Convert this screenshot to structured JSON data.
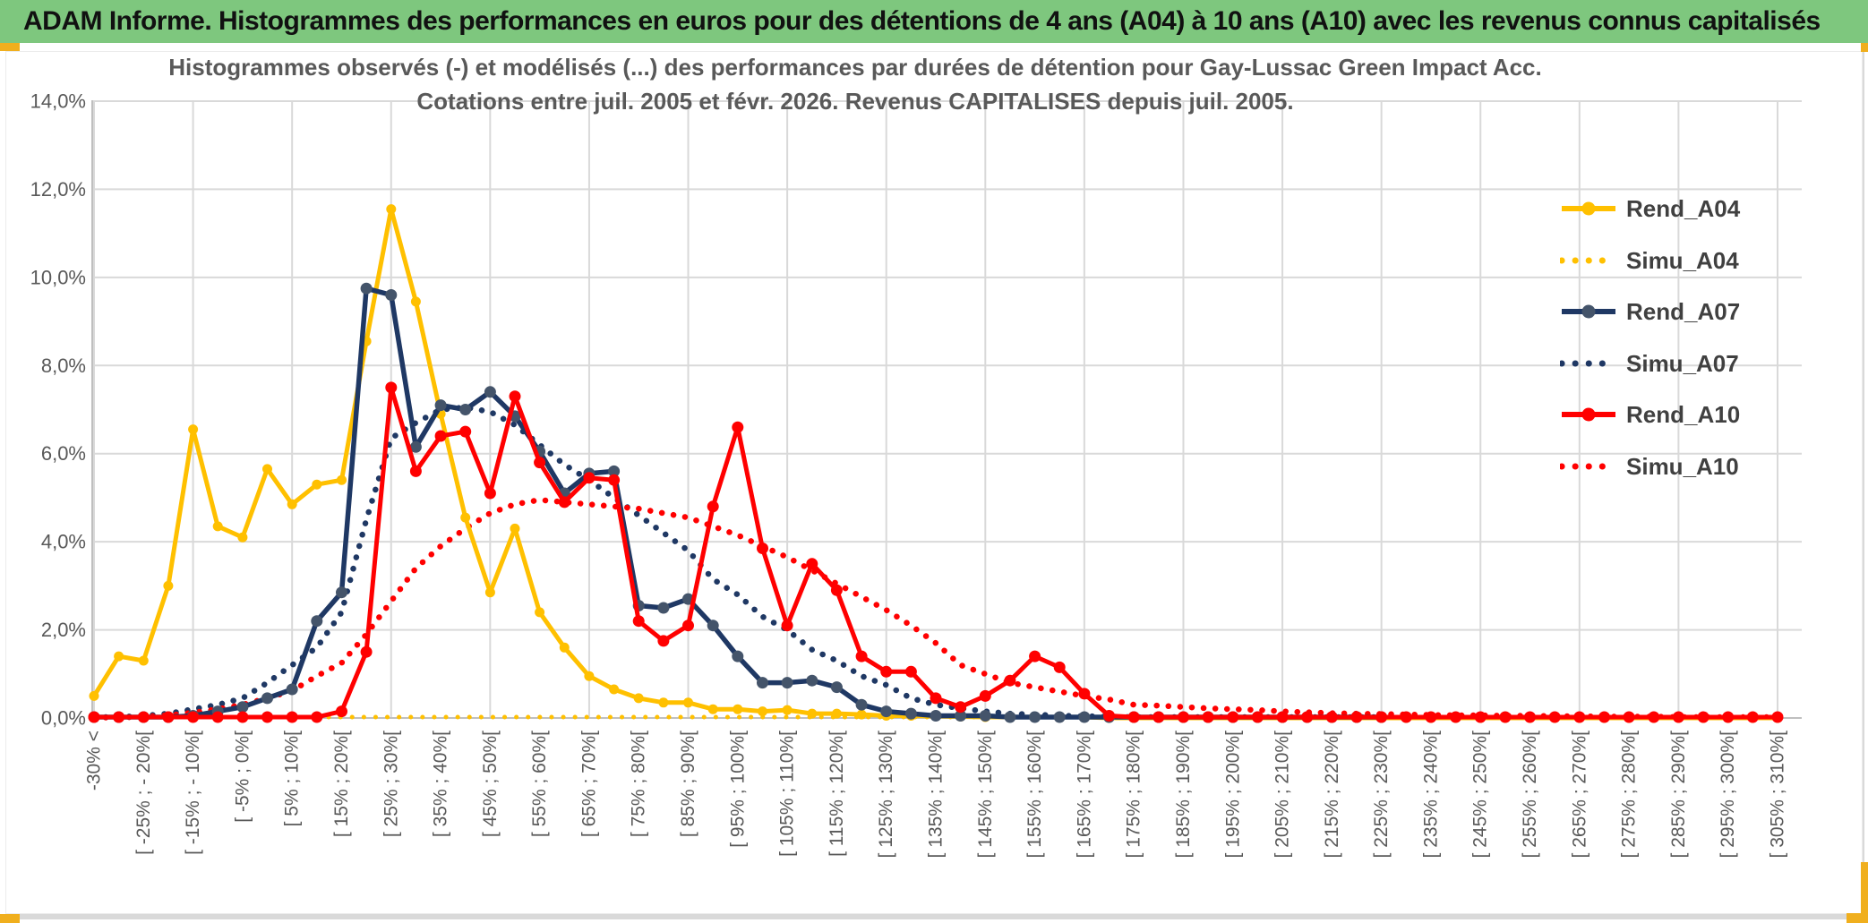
{
  "header": {
    "title": "ADAM Informe. Histogrammes des performances en euros pour des détentions de 4 ans (A04) à 10 ans (A10) avec les revenus connus capitalisés"
  },
  "chart": {
    "title_line1": "Histogrammes observés (-) et modélisés (...) des performances par durées de détention pour Gay-Lussac Green Impact Acc.",
    "title_line2": "Cotations entre juil. 2005 et févr. 2026. Revenus CAPITALISES depuis juil. 2005.",
    "y_axis_labels": [
      "0,0%",
      "2,0%",
      "4,0%",
      "6,0%",
      "8,0%",
      "10,0%",
      "12,0%",
      "14,0%"
    ]
  },
  "colors": {
    "header_green": "#7EC77E",
    "accent_yellow": "#F0AF1E",
    "gridline": "#D9D9D9",
    "axis_line": "#BFBFBF",
    "axis_text": "#595959",
    "title_text": "#595959",
    "legend_text": "#404040",
    "gold": "#FFC000",
    "navy": "#1F3864",
    "navy_marker": "#44546A",
    "red": "#FF0000"
  },
  "chart_data": {
    "type": "line",
    "title": "Histogrammes observés (-) et modélisés (...) des performances par durées de détention pour Gay-Lussac Green Impact Acc. Cotations entre juil. 2005 et févr. 2026. Revenus CAPITALISES depuis juil. 2005.",
    "ylabel": "",
    "xlabel": "",
    "ylim": [
      0,
      14
    ],
    "y_tick_step_percent": 2,
    "grid": true,
    "legend_position": "right",
    "points_per_x_tick": 2,
    "x_tick_labels": [
      "-30% <",
      "[ -25% ; - 20%[",
      "[ -15% ; - 10%[",
      "[ -5% ; 0%[",
      "[ 5% ; 10%[",
      "[ 15% ; 20%[",
      "[ 25% ; 30%[",
      "[ 35% ; 40%[",
      "[ 45% ; 50%[",
      "[ 55% ; 60%[",
      "[ 65% ; 70%[",
      "[ 75% ; 80%[",
      "[ 85% ; 90%[",
      "[ 95% ; 100%[",
      "[ 105% ; 110%[",
      "[ 115% ; 120%[",
      "[ 125% ; 130%[",
      "[ 135% ; 140%[",
      "[ 145% ; 150%[",
      "[ 155% ; 160%[",
      "[ 165% ; 170%[",
      "[ 175% ; 180%[",
      "[ 185% ; 190%[",
      "[ 195% ; 200%[",
      "[ 205% ; 210%[",
      "[ 215% ; 220%[",
      "[ 225% ; 230%[",
      "[ 235% ; 240%[",
      "[ 245% ; 250%[",
      "[ 255% ; 260%[",
      "[ 265% ; 270%[",
      "[ 275% ; 280%[",
      "[ 285% ; 290%[",
      "[ 295% ; 300%[",
      "[ 305% ; 310%["
    ],
    "series": [
      {
        "name": "Rend_A04",
        "style": "solid",
        "color": "#FFC000",
        "marker_color": "#FFC000",
        "line_width": 5,
        "marker_r": 5.5,
        "values": [
          0.5,
          1.4,
          1.3,
          3.0,
          6.55,
          4.35,
          4.1,
          5.65,
          4.85,
          5.3,
          5.4,
          8.55,
          11.55,
          9.45,
          6.9,
          4.55,
          2.85,
          4.3,
          2.4,
          1.6,
          0.95,
          0.65,
          0.45,
          0.35,
          0.35,
          0.2,
          0.2,
          0.15,
          0.18,
          0.1,
          0.1,
          0.08,
          0.05,
          0.05,
          0.04,
          0.03,
          0.02,
          0.02,
          0.02,
          0.02,
          0.02,
          0,
          0,
          0,
          0,
          0,
          0,
          0,
          0,
          0,
          0,
          0,
          0,
          0,
          0,
          0,
          0,
          0,
          0,
          0,
          0,
          0,
          0,
          0,
          0,
          0,
          0,
          0,
          0
        ]
      },
      {
        "name": "Simu_A04",
        "style": "dotted",
        "color": "#FFC000",
        "marker_color": "#FFC000",
        "line_width": 5,
        "marker_r": 0,
        "values": [
          0.02,
          0.02,
          0.02,
          0.02,
          0.02,
          0.02,
          0.02,
          0.02,
          0.02,
          0.02,
          0.02,
          0.02,
          0.02,
          0.02,
          0.02,
          0.02,
          0.02,
          0.02,
          0.02,
          0.02,
          0.02,
          0.02,
          0.02,
          0.02,
          0.02,
          0.02,
          0.02,
          0.02,
          0.02,
          0.02,
          0.02,
          0.02,
          0.02,
          0.02,
          0.02,
          0.02,
          0.02,
          0.02,
          0.02,
          0.02,
          0.02,
          0.02,
          0.02,
          0.02,
          0.02,
          0.02,
          0.02,
          0.02,
          0.02,
          0.02,
          0.02,
          0.02,
          0.02,
          0.02,
          0.02,
          0.02,
          0.02,
          0.02,
          0.02,
          0.02,
          0.02,
          0.02,
          0.02,
          0.02,
          0.02,
          0.02,
          0.02,
          0.02,
          0.02
        ]
      },
      {
        "name": "Rend_A07",
        "style": "solid",
        "color": "#1F3864",
        "marker_color": "#44546A",
        "line_width": 5.5,
        "marker_r": 6.5,
        "values": [
          0.02,
          0.02,
          0.02,
          0.02,
          0.05,
          0.15,
          0.25,
          0.45,
          0.65,
          2.2,
          2.85,
          9.75,
          9.6,
          6.15,
          7.1,
          7.0,
          7.4,
          6.85,
          6.05,
          5.1,
          5.55,
          5.6,
          2.55,
          2.5,
          2.7,
          2.1,
          1.4,
          0.8,
          0.8,
          0.85,
          0.7,
          0.3,
          0.15,
          0.1,
          0.05,
          0.05,
          0.05,
          0.02,
          0.02,
          0.02,
          0.02,
          0.02,
          0.02,
          0.02,
          0.02,
          0.02,
          0.02,
          0.02,
          0.02,
          0.02,
          0.02,
          0.02,
          0.02
        ]
      },
      {
        "name": "Simu_A07",
        "style": "dotted",
        "color": "#1F3864",
        "marker_color": "#1F3864",
        "line_width": 6.5,
        "marker_r": 0,
        "values": [
          0.02,
          0.02,
          0.05,
          0.1,
          0.2,
          0.3,
          0.45,
          0.8,
          1.2,
          1.6,
          2.4,
          4.5,
          6.35,
          6.7,
          7.0,
          7.05,
          6.95,
          6.65,
          6.2,
          5.75,
          5.4,
          5.0,
          4.6,
          4.2,
          3.8,
          3.15,
          2.8,
          2.3,
          2.0,
          1.55,
          1.3,
          0.95,
          0.75,
          0.45,
          0.3,
          0.22,
          0.15,
          0.1,
          0.08,
          0.05,
          0.04,
          0.03,
          0.02,
          0.02,
          0.02,
          0.02,
          0.02,
          0.02,
          0.02,
          0.02,
          0.02,
          0.02,
          0.02
        ]
      },
      {
        "name": "Rend_A10",
        "style": "solid",
        "color": "#FF0000",
        "marker_color": "#FF0000",
        "line_width": 5,
        "marker_r": 6.5,
        "values": [
          0.02,
          0.02,
          0.02,
          0.02,
          0.02,
          0.02,
          0.02,
          0.02,
          0.02,
          0.02,
          0.15,
          1.5,
          7.5,
          5.6,
          6.4,
          6.5,
          5.1,
          7.3,
          5.8,
          4.9,
          5.45,
          5.4,
          2.2,
          1.75,
          2.1,
          4.8,
          6.6,
          3.85,
          2.1,
          3.5,
          2.9,
          1.4,
          1.05,
          1.05,
          0.45,
          0.25,
          0.5,
          0.85,
          1.4,
          1.15,
          0.55,
          0.05,
          0.02,
          0.02,
          0.02,
          0.02,
          0.02,
          0.02,
          0.02,
          0.02,
          0.02,
          0.02,
          0.02,
          0.02,
          0.02,
          0.02,
          0.02,
          0.02,
          0.02,
          0.02,
          0.02,
          0.02,
          0.02,
          0.02,
          0.02,
          0.02,
          0.02,
          0.02,
          0.02
        ]
      },
      {
        "name": "Simu_A10",
        "style": "dotted",
        "color": "#FF0000",
        "marker_color": "#FF0000",
        "line_width": 6.5,
        "marker_r": 0,
        "values": [
          0.01,
          0.01,
          0.03,
          0.06,
          0.12,
          0.2,
          0.3,
          0.45,
          0.62,
          0.95,
          1.25,
          1.9,
          2.65,
          3.4,
          3.9,
          4.3,
          4.65,
          4.85,
          4.95,
          4.9,
          4.85,
          4.8,
          4.75,
          4.65,
          4.55,
          4.35,
          4.15,
          3.9,
          3.65,
          3.35,
          3.05,
          2.75,
          2.45,
          2.1,
          1.7,
          1.2,
          1.0,
          0.8,
          0.7,
          0.6,
          0.5,
          0.42,
          0.3,
          0.28,
          0.25,
          0.22,
          0.2,
          0.18,
          0.15,
          0.13,
          0.11,
          0.1,
          0.09,
          0.08,
          0.07,
          0.06,
          0.06,
          0.05,
          0.05,
          0.04,
          0.04,
          0.03,
          0.03,
          0.03,
          0.02,
          0.02,
          0.02,
          0.02,
          0.02
        ]
      }
    ]
  }
}
